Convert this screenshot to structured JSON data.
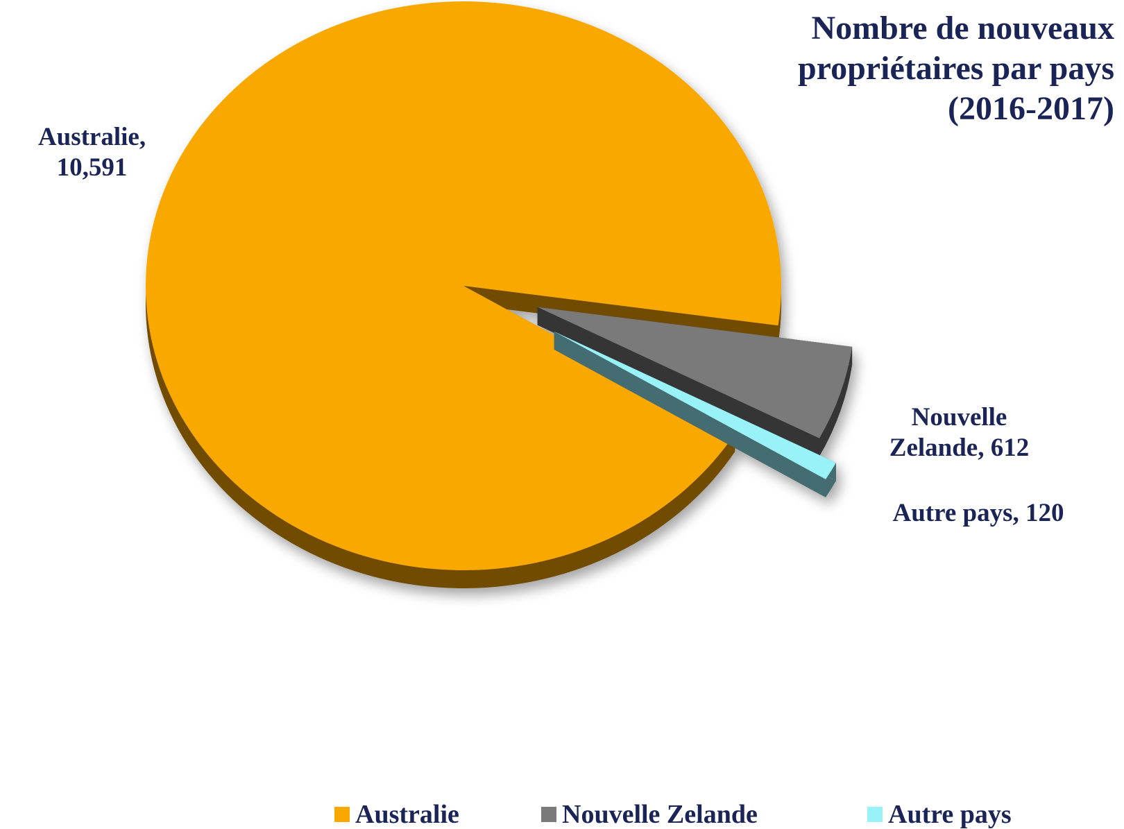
{
  "chart_data": {
    "type": "pie3d",
    "title": "Nombre de nouveaux propriétaires par pays (2016-2017)",
    "categories": [
      "Australie",
      "Nouvelle Zelande",
      "Autre pays"
    ],
    "values": [
      10591,
      612,
      120
    ],
    "value_labels": [
      "10,591",
      "612",
      "120"
    ],
    "label_separator": ", ",
    "colors": [
      "#F9A800",
      "#7A7A7A",
      "#99F2F8"
    ],
    "legend": "bottom"
  }
}
